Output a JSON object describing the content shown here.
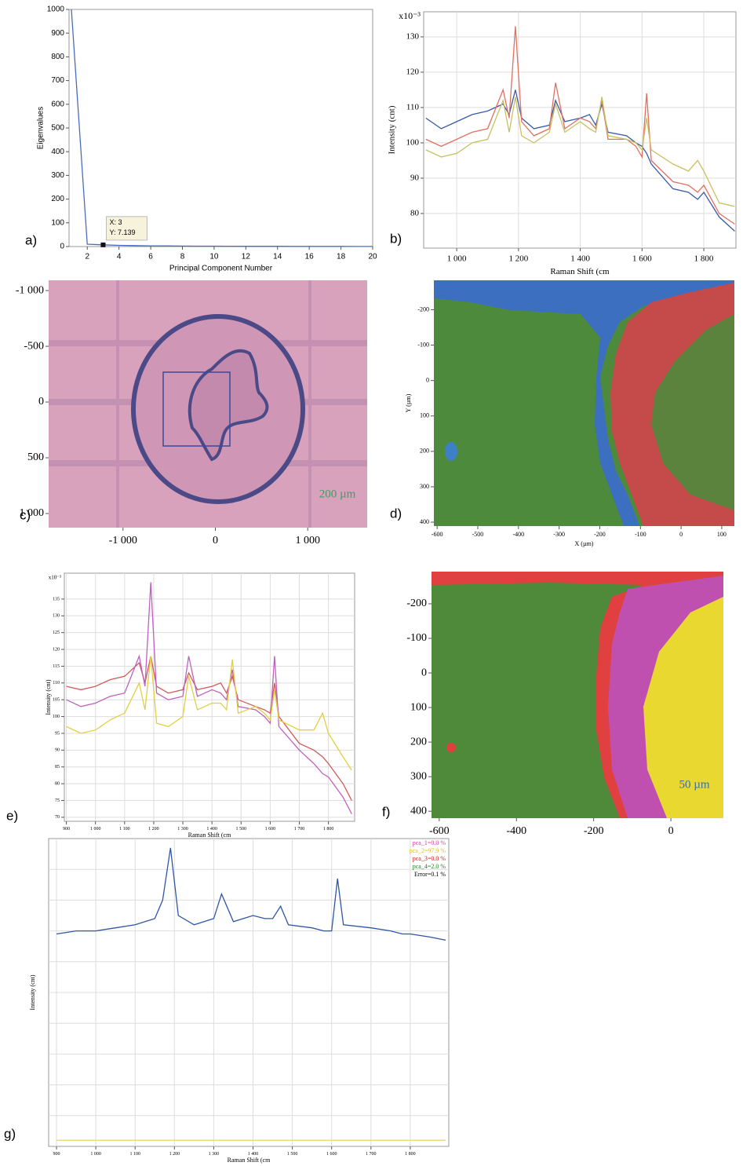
{
  "chart_data": [
    {
      "type": "line",
      "panel_label": "a)",
      "xlabel": "Principal Component Number",
      "ylabel": "Eigenvalues",
      "x": [
        1,
        2,
        3,
        4,
        5,
        6,
        7,
        8,
        9,
        10,
        11,
        12,
        13,
        14,
        15,
        16,
        17,
        18,
        19,
        20
      ],
      "series": [
        {
          "color": "#4a6cc0",
          "values": [
            1000,
            10,
            7.139,
            5,
            4,
            3,
            2.5,
            2,
            1.8,
            1.5,
            1.3,
            1.1,
            1,
            0.9,
            0.8,
            0.7,
            0.6,
            0.5,
            0.4,
            0.3
          ]
        }
      ],
      "xlim": [
        0.85,
        20
      ],
      "xticks": [
        2,
        4,
        6,
        8,
        10,
        12,
        14,
        16,
        18,
        20
      ],
      "ylim": [
        0,
        1000
      ],
      "yticks": [
        0,
        100,
        200,
        300,
        400,
        500,
        600,
        700,
        800,
        900,
        1000
      ],
      "grid": false,
      "annotation": [
        "X: 3",
        "Y: 7.139"
      ]
    },
    {
      "type": "line",
      "panel_label": "b)",
      "xlabel": "Raman Shift (cm",
      "ylabel": "Intensity (cnt)",
      "y_multiplier": "x10⁻³",
      "x": [
        900,
        950,
        1000,
        1050,
        1100,
        1150,
        1170,
        1190,
        1210,
        1250,
        1300,
        1320,
        1350,
        1400,
        1430,
        1450,
        1470,
        1490,
        1550,
        1580,
        1600,
        1615,
        1630,
        1700,
        1750,
        1780,
        1800,
        1850,
        1900
      ],
      "series": [
        {
          "color": "#3a5aa8",
          "values": [
            107,
            104,
            106,
            108,
            109,
            111,
            108,
            115,
            107,
            104,
            105,
            112,
            106,
            107,
            108,
            105,
            111,
            103,
            102,
            100,
            99,
            97,
            94,
            87,
            86,
            84,
            86,
            79,
            75
          ]
        },
        {
          "color": "#e07060",
          "values": [
            101,
            99,
            101,
            103,
            104,
            115,
            107,
            133,
            106,
            102,
            104,
            117,
            104,
            107,
            106,
            104,
            112,
            101,
            101,
            99,
            96,
            114,
            95,
            89,
            88,
            86,
            88,
            80,
            77
          ]
        },
        {
          "color": "#c8c060",
          "values": [
            98,
            96,
            97,
            100,
            101,
            112,
            103,
            113,
            102,
            100,
            103,
            111,
            103,
            106,
            104,
            103,
            113,
            102,
            101,
            100,
            98,
            107,
            98,
            94,
            92,
            95,
            92,
            83,
            82
          ]
        }
      ],
      "xlim": [
        893,
        1904
      ],
      "xticks": [
        {
          "value": 1000,
          "label": "1 000"
        },
        {
          "value": 1200,
          "label": "1 200"
        },
        {
          "value": 1400,
          "label": "1 400"
        },
        {
          "value": 1600,
          "label": "1 600"
        },
        {
          "value": 1800,
          "label": "1 800"
        }
      ],
      "ylim": [
        70.2,
        137.1
      ],
      "yticks": [
        80,
        90,
        100,
        110,
        120,
        130
      ],
      "grid": true
    },
    {
      "type": "image",
      "panel_label": "c)",
      "scale_bar": "200 µm",
      "y_inverted": true,
      "xlim": [
        -1805,
        1644
      ],
      "xticks": [
        {
          "value": -1000,
          "label": "-1 000"
        },
        0,
        {
          "value": 1000,
          "label": "1 000"
        }
      ],
      "ylim": [
        -1092,
        1127
      ],
      "yticks": [
        {
          "value": -1000,
          "label": "-1 000"
        },
        -500,
        0,
        500,
        {
          "value": 1000,
          "label": "1 000"
        }
      ]
    },
    {
      "type": "image",
      "panel_label": "d)",
      "xlabel": "X (µm)",
      "ylabel": "Y (µm)",
      "y_inverted": true,
      "xlim": [
        -608,
        131
      ],
      "xticks": [
        -600,
        -500,
        -400,
        -300,
        -200,
        -100,
        0,
        100
      ],
      "ylim": [
        -283,
        411
      ],
      "yticks": [
        -200,
        -100,
        0,
        100,
        200,
        300,
        400
      ]
    },
    {
      "type": "line",
      "panel_label": "e)",
      "xlabel": "Raman Shift (cm",
      "ylabel": "Intensity (cnt)",
      "y_multiplier": "x10⁻³",
      "x": [
        900,
        950,
        1000,
        1050,
        1100,
        1150,
        1170,
        1190,
        1210,
        1250,
        1300,
        1320,
        1350,
        1400,
        1430,
        1450,
        1470,
        1490,
        1550,
        1580,
        1600,
        1615,
        1630,
        1700,
        1750,
        1780,
        1800,
        1850,
        1880
      ],
      "series": [
        {
          "color": "#d25a5a",
          "values": [
            109,
            108,
            109,
            111,
            112,
            116,
            110,
            118,
            109,
            107,
            108,
            113,
            108,
            109,
            110,
            107,
            112,
            105,
            103,
            102,
            101,
            110,
            100,
            92,
            90,
            88,
            86,
            80,
            75
          ]
        },
        {
          "color": "#c060c0",
          "values": [
            105,
            103,
            104,
            106,
            107,
            118,
            109,
            140,
            107,
            105,
            106,
            118,
            106,
            108,
            107,
            105,
            114,
            103,
            102,
            100,
            98,
            118,
            97,
            90,
            86,
            83,
            82,
            76,
            71
          ]
        },
        {
          "color": "#e0d040",
          "values": [
            97,
            95,
            96,
            99,
            101,
            110,
            102,
            118,
            98,
            97,
            100,
            112,
            102,
            104,
            104,
            102,
            117,
            101,
            103,
            101,
            99,
            108,
            99,
            96,
            96,
            101,
            95,
            88,
            84
          ]
        }
      ],
      "xlim": [
        893,
        1890
      ],
      "xticks": [
        900,
        {
          "value": 1000,
          "label": "1 000"
        },
        {
          "value": 1100,
          "label": "1 100"
        },
        {
          "value": 1200,
          "label": "1 200"
        },
        {
          "value": 1300,
          "label": "1 300"
        },
        {
          "value": 1400,
          "label": "1 400"
        },
        {
          "value": 1500,
          "label": "1 500"
        },
        {
          "value": 1600,
          "label": "1 600"
        },
        {
          "value": 1700,
          "label": "1 700"
        },
        {
          "value": 1800,
          "label": "1 800"
        }
      ],
      "ylim": [
        68.8,
        142.7
      ],
      "yticks": [
        70,
        75,
        80,
        85,
        90,
        95,
        100,
        105,
        110,
        115,
        120,
        125,
        130,
        135
      ],
      "grid": true
    },
    {
      "type": "image",
      "panel_label": "f)",
      "scale_bar": "50 µm",
      "y_inverted": true,
      "xlim": [
        -620,
        136
      ],
      "xticks": [
        -600,
        -400,
        -200,
        0
      ],
      "ylim": [
        -293,
        420
      ],
      "yticks": [
        -200,
        -100,
        0,
        100,
        200,
        300,
        400
      ]
    },
    {
      "type": "line",
      "panel_label": "g)",
      "xlabel": "Raman Shift (cm",
      "ylabel": "Intensity (cnt)",
      "x": [
        900,
        950,
        1000,
        1050,
        1100,
        1150,
        1170,
        1190,
        1210,
        1250,
        1300,
        1320,
        1350,
        1400,
        1430,
        1450,
        1470,
        1490,
        1550,
        1580,
        1600,
        1615,
        1630,
        1700,
        1750,
        1780,
        1800,
        1850,
        1890
      ],
      "series": [
        {
          "color": "#e8d870",
          "values": [
            2,
            2,
            2,
            2,
            2,
            2,
            2,
            2,
            2,
            2,
            2,
            2,
            2,
            2,
            2,
            2,
            2,
            2,
            2,
            2,
            2,
            2,
            2,
            2,
            2,
            2,
            2,
            2,
            2
          ]
        },
        {
          "color": "#2f55a8",
          "values": [
            69,
            70,
            70,
            71,
            72,
            74,
            80,
            97,
            75,
            72,
            74,
            82,
            73,
            75,
            74,
            74,
            78,
            72,
            71,
            70,
            70,
            87,
            72,
            71,
            70,
            69,
            69,
            68,
            67
          ]
        }
      ],
      "xlim": [
        880,
        1898
      ],
      "xticks": [
        900,
        {
          "value": 1000,
          "label": "1 000"
        },
        {
          "value": 1100,
          "label": "1 100"
        },
        {
          "value": 1200,
          "label": "1 200"
        },
        {
          "value": 1300,
          "label": "1 300"
        },
        {
          "value": 1400,
          "label": "1 400"
        },
        {
          "value": 1500,
          "label": "1 500"
        },
        {
          "value": 1600,
          "label": "1 600"
        },
        {
          "value": 1700,
          "label": "1 700"
        },
        {
          "value": 1800,
          "label": "1 800"
        }
      ],
      "ylim": [
        0,
        100
      ],
      "grid": true,
      "legend_entries": [
        {
          "text": "pca_1=0.0 %",
          "color": "#d040a0"
        },
        {
          "text": "pca_2=97.9 %",
          "color": "#e0c020"
        },
        {
          "text": "pca_3=0.0 %",
          "color": "#d02020"
        },
        {
          "text": "pca_4=2.0 %",
          "color": "#208020"
        },
        {
          "text": "Error=0.1 %",
          "color": "#000000"
        }
      ]
    }
  ]
}
